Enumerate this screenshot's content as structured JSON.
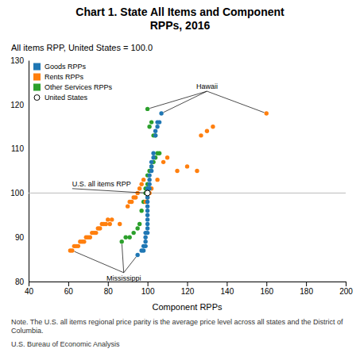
{
  "chart_data": {
    "type": "scatter",
    "title": "Chart 1. State All Items and Component\nRPPs, 2016",
    "subtitle": "All items RPP, United States = 100.0",
    "xlabel": "Component RPPs",
    "xlim": [
      40,
      200
    ],
    "ylim": [
      80,
      130
    ],
    "xticks": [
      40,
      60,
      80,
      100,
      120,
      140,
      160,
      180,
      200
    ],
    "yticks": [
      80,
      90,
      100,
      110,
      120,
      130
    ],
    "grid": false,
    "legend": "upper left",
    "reference_line": 100,
    "series": [
      {
        "name": "Goods RPPs",
        "marker": "square",
        "x": [
          95,
          97,
          98,
          98,
          99,
          99,
          99,
          99,
          100,
          100,
          100,
          100,
          100,
          100,
          100,
          100,
          100,
          100,
          100,
          101,
          101,
          101,
          101,
          102,
          102,
          102,
          103,
          103,
          104,
          104,
          105,
          105,
          106,
          107
        ],
        "values": [
          86,
          87,
          87,
          88,
          88,
          89,
          90,
          91,
          91,
          92,
          93,
          94,
          95,
          96,
          97,
          98,
          99,
          100,
          101,
          101,
          102,
          103,
          104,
          105,
          106,
          107,
          108,
          109,
          113,
          114,
          115,
          116,
          116,
          118
        ]
      },
      {
        "name": "Rents RPPs",
        "marker": "square",
        "x": [
          61,
          62,
          63,
          64,
          65,
          66,
          67,
          68,
          69,
          70,
          71,
          72,
          73,
          74,
          75,
          76,
          77,
          78,
          79,
          80,
          81,
          82,
          86,
          90,
          91,
          92,
          93,
          94,
          95,
          96,
          97,
          98,
          99,
          100,
          101,
          102,
          105,
          108,
          110,
          115,
          120,
          125,
          127,
          130,
          133,
          160
        ],
        "values": [
          87,
          87,
          88,
          88,
          88,
          89,
          89,
          89,
          90,
          90,
          90,
          91,
          91,
          91,
          92,
          92,
          93,
          93,
          93,
          94,
          93,
          94,
          93,
          97,
          98,
          98,
          99,
          99,
          100,
          101,
          102,
          103,
          98,
          99,
          100,
          101,
          103,
          107,
          108,
          105,
          106,
          105,
          113,
          114,
          115,
          118
        ]
      },
      {
        "name": "Other Services RPPs",
        "marker": "square",
        "x": [
          87,
          89,
          91,
          93,
          95,
          96,
          97,
          98,
          99,
          99,
          100,
          100,
          101,
          102,
          103,
          104,
          105,
          106,
          100,
          101,
          102,
          103,
          104
        ],
        "values": [
          89,
          90,
          90,
          91,
          92,
          93,
          96,
          98,
          100,
          101,
          102,
          104,
          105,
          106,
          107,
          108,
          109,
          109,
          119,
          115,
          116,
          113,
          113
        ]
      },
      {
        "name": "United States",
        "marker": "open",
        "x": [
          100
        ],
        "values": [
          100
        ]
      }
    ],
    "annotations": [
      {
        "text": "Hawaii",
        "x": 130,
        "y": 123,
        "points": [
          [
            107,
            118
          ],
          [
            160,
            118
          ],
          [
            100,
            119
          ]
        ]
      },
      {
        "text": "Mississippi",
        "x": 88,
        "y": 82,
        "points": [
          [
            95,
            86
          ],
          [
            62,
            87
          ],
          [
            87,
            89
          ]
        ]
      },
      {
        "text": "U.S. all items RPP",
        "x": 62,
        "y": 101.0,
        "points": [
          [
            99.5,
            100
          ]
        ]
      }
    ],
    "note": "Note. The U.S. all items regional price parity is the average price level across all states and the District of Columbia.",
    "source": "U.S. Bureau of Economic Analysis"
  }
}
